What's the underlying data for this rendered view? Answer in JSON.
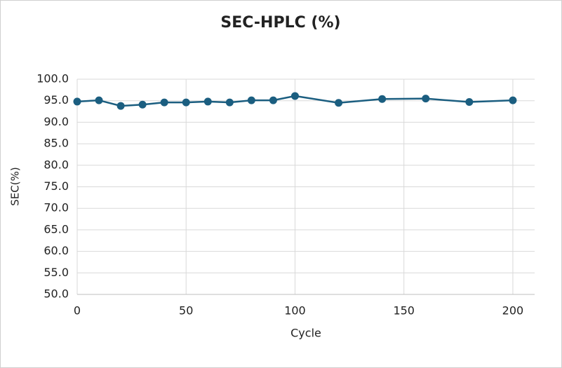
{
  "chart_data": {
    "type": "line",
    "title": "SEC-HPLC (%)",
    "x_label": "Cycle",
    "y_label": "SEC(%)",
    "x": [
      0,
      10,
      20,
      30,
      40,
      50,
      60,
      70,
      80,
      90,
      100,
      120,
      140,
      160,
      180,
      200
    ],
    "values": [
      94.8,
      95.1,
      93.8,
      94.1,
      94.6,
      94.6,
      94.8,
      94.6,
      95.1,
      95.1,
      96.1,
      94.5,
      95.4,
      95.5,
      94.7,
      95.1
    ],
    "color": "#1b5e80",
    "xlim": [
      0,
      210
    ],
    "xticks": [
      0,
      50,
      100,
      150,
      200
    ],
    "ylim": [
      50,
      100
    ],
    "yticks": [
      {
        "value": 50,
        "label": "50.0"
      },
      {
        "value": 55,
        "label": "55.0"
      },
      {
        "value": 60,
        "label": "60.0"
      },
      {
        "value": 65,
        "label": "65.0"
      },
      {
        "value": 70,
        "label": "70.0"
      },
      {
        "value": 75,
        "label": "75.0"
      },
      {
        "value": 80,
        "label": "80.0"
      },
      {
        "value": 85,
        "label": "85.0"
      },
      {
        "value": 90,
        "label": "90.0"
      },
      {
        "value": 95,
        "label": "95.0"
      },
      {
        "value": 100,
        "label": "100.0"
      }
    ],
    "grid": true
  }
}
